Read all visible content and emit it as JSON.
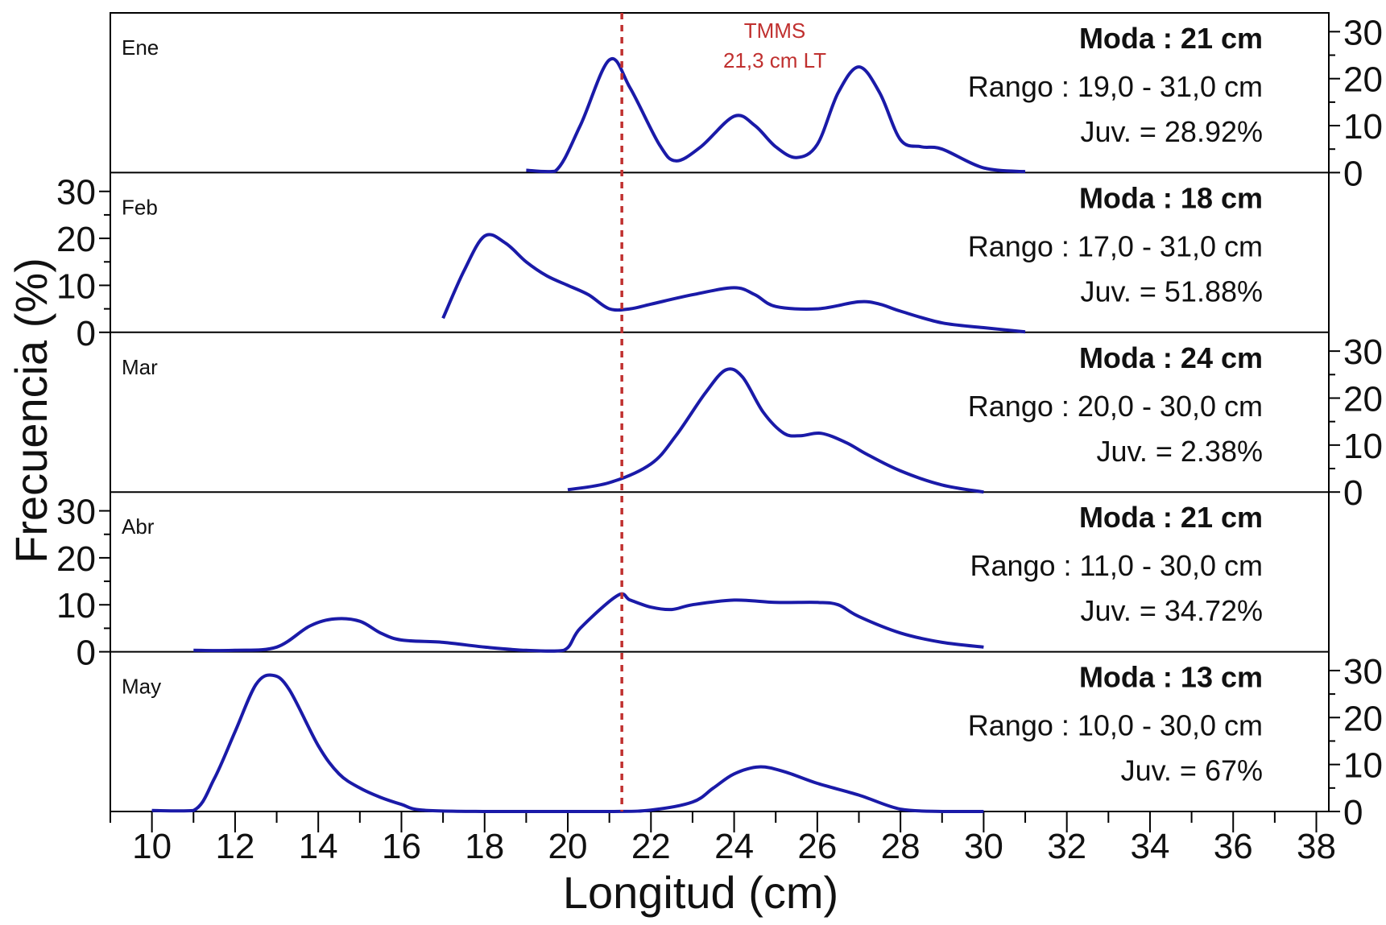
{
  "chart_data": {
    "type": "line",
    "xlabel": "Longitud (cm)",
    "ylabel": "Frecuencia (%)",
    "xlim": [
      9,
      38.3
    ],
    "ylim": [
      0,
      34
    ],
    "x_ticks": [
      10,
      12,
      14,
      16,
      18,
      20,
      22,
      24,
      26,
      28,
      30,
      32,
      34,
      36,
      38
    ],
    "y_ticks": [
      0,
      10,
      20,
      30
    ],
    "reference_line": {
      "x": 21.3,
      "label_line1": "TMMS",
      "label_line2": "21,3 cm LT",
      "color": "#c0302f"
    },
    "line_color": "#1a1aa8",
    "panels": [
      {
        "month": "Ene",
        "moda": "Moda : 21 cm",
        "rango": "Rango : 19,0 - 31,0 cm",
        "juv": "Juv. = 28.92%",
        "y_axis_side": "right",
        "points": [
          [
            19,
            0.5
          ],
          [
            19.7,
            0.3
          ],
          [
            20.3,
            10
          ],
          [
            21,
            24
          ],
          [
            21.5,
            18
          ],
          [
            22.2,
            6
          ],
          [
            22.6,
            2.5
          ],
          [
            23.2,
            5.5
          ],
          [
            24,
            12
          ],
          [
            24.5,
            10
          ],
          [
            25,
            5.5
          ],
          [
            25.5,
            3.2
          ],
          [
            26,
            6
          ],
          [
            26.5,
            17
          ],
          [
            27,
            22.5
          ],
          [
            27.5,
            17
          ],
          [
            28,
            7
          ],
          [
            28.5,
            5.5
          ],
          [
            29,
            5
          ],
          [
            30,
            1
          ],
          [
            31,
            0.2
          ]
        ]
      },
      {
        "month": "Feb",
        "moda": "Moda : 18 cm",
        "rango": "Rango : 17,0 - 31,0 cm",
        "juv": "Juv. = 51.88%",
        "y_axis_side": "left",
        "points": [
          [
            17,
            3
          ],
          [
            17.5,
            13
          ],
          [
            18,
            20.5
          ],
          [
            18.5,
            19
          ],
          [
            19,
            15
          ],
          [
            19.5,
            12
          ],
          [
            20,
            10
          ],
          [
            20.5,
            8
          ],
          [
            21,
            5
          ],
          [
            21.5,
            5
          ],
          [
            22,
            6
          ],
          [
            23,
            8
          ],
          [
            24,
            9.5
          ],
          [
            24.5,
            8
          ],
          [
            25,
            5.5
          ],
          [
            26,
            5
          ],
          [
            27,
            6.5
          ],
          [
            27.5,
            6
          ],
          [
            28,
            4.5
          ],
          [
            29,
            2
          ],
          [
            30,
            1
          ],
          [
            31,
            0.1
          ]
        ]
      },
      {
        "month": "Mar",
        "moda": "Moda : 24 cm",
        "rango": "Rango : 20,0 - 30,0 cm",
        "juv": "Juv. = 2.38%",
        "y_axis_side": "right",
        "points": [
          [
            20,
            0.5
          ],
          [
            21,
            2
          ],
          [
            22,
            6
          ],
          [
            22.6,
            12
          ],
          [
            23.3,
            21
          ],
          [
            23.8,
            26
          ],
          [
            24.2,
            24.5
          ],
          [
            24.7,
            17
          ],
          [
            25.2,
            12.5
          ],
          [
            25.6,
            12
          ],
          [
            26.1,
            12.5
          ],
          [
            26.7,
            10.5
          ],
          [
            27.2,
            8
          ],
          [
            28,
            4.5
          ],
          [
            29,
            1.5
          ],
          [
            30,
            0
          ]
        ]
      },
      {
        "month": "Abr",
        "moda": "Moda : 21 cm",
        "rango": "Rango : 11,0 - 30,0 cm",
        "juv": "Juv. = 34.72%",
        "y_axis_side": "left",
        "points": [
          [
            11,
            0.3
          ],
          [
            12,
            0.3
          ],
          [
            13,
            1
          ],
          [
            13.8,
            5.5
          ],
          [
            14.4,
            7
          ],
          [
            15,
            6.5
          ],
          [
            15.5,
            4
          ],
          [
            16,
            2.5
          ],
          [
            17,
            2
          ],
          [
            18,
            1
          ],
          [
            19,
            0.3
          ],
          [
            19.9,
            0.3
          ],
          [
            20.3,
            5
          ],
          [
            21.2,
            12
          ],
          [
            21.5,
            11
          ],
          [
            22,
            9.5
          ],
          [
            22.5,
            9
          ],
          [
            23,
            10
          ],
          [
            24,
            11
          ],
          [
            25,
            10.5
          ],
          [
            26,
            10.5
          ],
          [
            26.5,
            10
          ],
          [
            27,
            7.5
          ],
          [
            28,
            4
          ],
          [
            29,
            2
          ],
          [
            30,
            1
          ]
        ]
      },
      {
        "month": "May",
        "moda": "Moda : 13 cm",
        "rango": "Rango : 10,0 - 30,0 cm",
        "juv": "Juv. = 67%",
        "y_axis_side": "right",
        "points": [
          [
            10,
            0.2
          ],
          [
            11,
            0.2
          ],
          [
            11.5,
            7
          ],
          [
            12,
            17
          ],
          [
            12.5,
            27
          ],
          [
            12.9,
            29
          ],
          [
            13.3,
            26
          ],
          [
            14,
            14
          ],
          [
            14.5,
            8
          ],
          [
            15,
            5
          ],
          [
            15.5,
            3
          ],
          [
            16,
            1.5
          ],
          [
            16.5,
            0.3
          ],
          [
            18,
            0
          ],
          [
            21,
            0
          ],
          [
            22,
            0.3
          ],
          [
            23,
            2
          ],
          [
            23.5,
            5
          ],
          [
            24,
            8
          ],
          [
            24.6,
            9.5
          ],
          [
            25.2,
            8.5
          ],
          [
            26,
            6
          ],
          [
            27,
            3.5
          ],
          [
            28,
            0.5
          ],
          [
            29,
            0
          ],
          [
            30,
            0
          ]
        ]
      }
    ]
  }
}
